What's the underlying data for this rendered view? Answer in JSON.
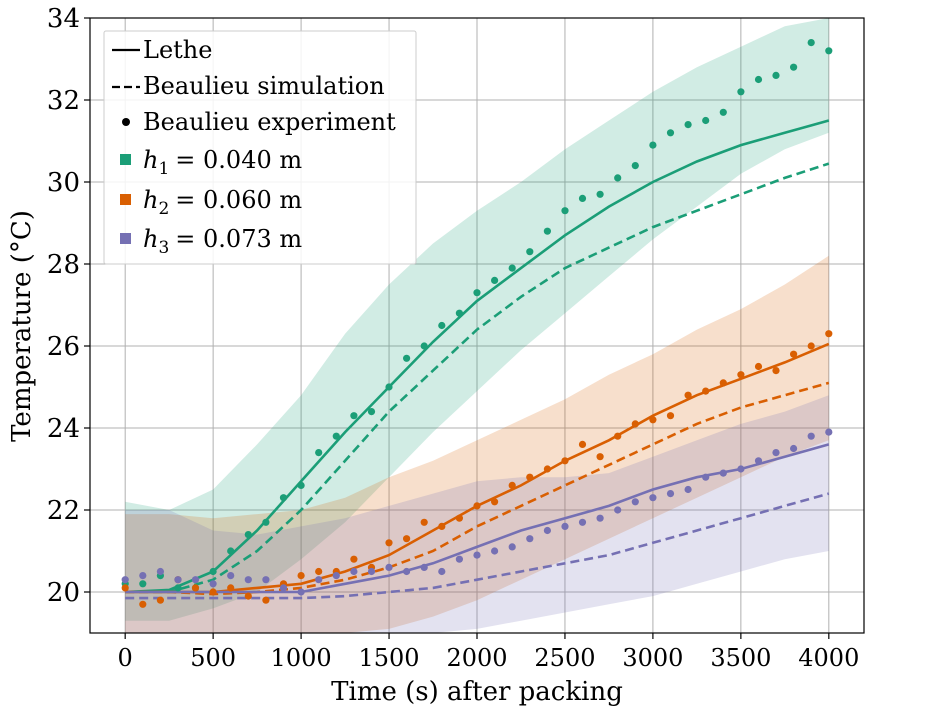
{
  "chart_data": {
    "type": "line",
    "xlabel": "Time (s) after packing",
    "ylabel": "Temperature (°C)",
    "xlim": [
      -200,
      4200
    ],
    "ylim": [
      19,
      34
    ],
    "xticks": [
      0,
      500,
      1000,
      1500,
      2000,
      2500,
      3000,
      3500,
      4000
    ],
    "yticks": [
      20,
      22,
      24,
      26,
      28,
      30,
      32,
      34
    ],
    "grid": true,
    "legend_position": "top-left",
    "legend": {
      "style_entries": [
        {
          "label": "Lethe",
          "style": "solid-line"
        },
        {
          "label": "Beaulieu simulation",
          "style": "dashed-line"
        },
        {
          "label": "Beaulieu experiment",
          "style": "dot"
        }
      ],
      "series_entries": [
        {
          "symbol": "h",
          "sub": "1",
          "value": "= 0.040 m"
        },
        {
          "symbol": "h",
          "sub": "2",
          "value": "= 0.060 m"
        },
        {
          "symbol": "h",
          "sub": "3",
          "value": "= 0.073 m"
        }
      ]
    },
    "series": [
      {
        "name": "h1 = 0.040 m",
        "color": "#1b9e77",
        "lethe": {
          "x": [
            0,
            250,
            500,
            750,
            1000,
            1250,
            1500,
            1750,
            2000,
            2250,
            2500,
            2750,
            3000,
            3250,
            3500,
            3750,
            4000
          ],
          "y": [
            20.0,
            20.05,
            20.5,
            21.5,
            22.7,
            23.9,
            25.0,
            26.1,
            27.1,
            27.9,
            28.7,
            29.4,
            30.0,
            30.5,
            30.9,
            31.2,
            31.5
          ]
        },
        "simulation": {
          "x": [
            0,
            250,
            500,
            750,
            1000,
            1250,
            1500,
            1750,
            2000,
            2250,
            2500,
            2750,
            3000,
            3250,
            3500,
            3750,
            4000
          ],
          "y": [
            20.0,
            20.0,
            20.3,
            21.0,
            22.0,
            23.2,
            24.4,
            25.4,
            26.4,
            27.2,
            27.9,
            28.4,
            28.9,
            29.3,
            29.7,
            30.1,
            30.45
          ]
        },
        "experiment": {
          "x": [
            0,
            100,
            200,
            300,
            400,
            500,
            600,
            700,
            800,
            900,
            1000,
            1100,
            1200,
            1300,
            1400,
            1500,
            1600,
            1700,
            1800,
            1900,
            2000,
            2100,
            2200,
            2300,
            2400,
            2500,
            2600,
            2700,
            2800,
            2900,
            3000,
            3100,
            3200,
            3300,
            3400,
            3500,
            3600,
            3700,
            3800,
            3900,
            4000
          ],
          "y": [
            20.2,
            20.2,
            20.4,
            20.1,
            20.1,
            20.5,
            21.0,
            21.4,
            21.7,
            22.3,
            22.6,
            23.4,
            23.8,
            24.3,
            24.4,
            25.0,
            25.7,
            26.0,
            26.5,
            26.8,
            27.3,
            27.6,
            27.9,
            28.3,
            28.8,
            29.3,
            29.6,
            29.7,
            30.1,
            30.4,
            30.9,
            31.2,
            31.4,
            31.5,
            31.7,
            32.2,
            32.5,
            32.6,
            32.8,
            33.4,
            33.2
          ]
        },
        "band": {
          "x": [
            0,
            250,
            500,
            750,
            1000,
            1250,
            1500,
            1750,
            2000,
            2250,
            2500,
            2750,
            3000,
            3250,
            3500,
            3750,
            4000
          ],
          "lower": [
            19.3,
            19.3,
            19.6,
            20.0,
            20.8,
            21.7,
            22.8,
            23.9,
            24.9,
            25.9,
            26.8,
            27.7,
            28.6,
            29.4,
            30.2,
            30.8,
            31.2
          ],
          "upper": [
            22.2,
            22.0,
            22.5,
            23.6,
            24.8,
            26.3,
            27.5,
            28.5,
            29.3,
            30.0,
            30.8,
            31.5,
            32.2,
            32.8,
            33.3,
            33.8,
            34.0
          ]
        }
      },
      {
        "name": "h2 = 0.060 m",
        "color": "#d95f02",
        "lethe": {
          "x": [
            0,
            250,
            500,
            750,
            1000,
            1250,
            1500,
            1750,
            2000,
            2250,
            2500,
            2750,
            3000,
            3250,
            3500,
            3750,
            4000
          ],
          "y": [
            20.0,
            20.0,
            20.0,
            20.1,
            20.2,
            20.5,
            20.9,
            21.5,
            22.1,
            22.6,
            23.2,
            23.7,
            24.3,
            24.8,
            25.2,
            25.6,
            26.05
          ]
        },
        "simulation": {
          "x": [
            0,
            250,
            500,
            750,
            1000,
            1250,
            1500,
            1750,
            2000,
            2250,
            2500,
            2750,
            3000,
            3250,
            3500,
            3750,
            4000
          ],
          "y": [
            20.0,
            20.0,
            19.95,
            20.0,
            20.1,
            20.3,
            20.6,
            21.0,
            21.6,
            22.1,
            22.6,
            23.1,
            23.6,
            24.1,
            24.5,
            24.8,
            25.1
          ]
        },
        "experiment": {
          "x": [
            0,
            100,
            200,
            300,
            400,
            500,
            600,
            700,
            800,
            900,
            1000,
            1100,
            1200,
            1300,
            1400,
            1500,
            1600,
            1700,
            1800,
            1900,
            2000,
            2100,
            2200,
            2300,
            2400,
            2500,
            2600,
            2700,
            2800,
            2900,
            3000,
            3100,
            3200,
            3300,
            3400,
            3500,
            3600,
            3700,
            3800,
            3900,
            4000
          ],
          "y": [
            20.1,
            19.7,
            19.8,
            20.3,
            20.1,
            20.0,
            20.1,
            19.9,
            19.8,
            20.2,
            20.4,
            20.5,
            20.5,
            20.8,
            20.6,
            21.2,
            21.3,
            21.7,
            21.6,
            21.8,
            22.1,
            22.2,
            22.6,
            22.8,
            23.0,
            23.2,
            23.6,
            23.3,
            23.8,
            24.1,
            24.2,
            24.3,
            24.8,
            24.9,
            25.1,
            25.3,
            25.5,
            25.4,
            25.8,
            26.0,
            26.3
          ]
        },
        "band": {
          "x": [
            0,
            250,
            500,
            750,
            1000,
            1250,
            1500,
            1750,
            2000,
            2250,
            2500,
            2750,
            3000,
            3250,
            3500,
            3750,
            4000
          ],
          "lower": [
            19.0,
            19.0,
            19.0,
            19.0,
            19.0,
            19.0,
            19.1,
            19.4,
            19.8,
            20.3,
            20.8,
            21.3,
            21.8,
            22.3,
            22.8,
            23.3,
            23.7
          ],
          "upper": [
            21.9,
            21.9,
            21.8,
            21.9,
            22.0,
            22.3,
            22.8,
            23.2,
            23.7,
            24.2,
            24.7,
            25.3,
            25.8,
            26.4,
            26.9,
            27.5,
            28.2
          ]
        }
      },
      {
        "name": "h3 = 0.073 m",
        "color": "#7570b3",
        "lethe": {
          "x": [
            0,
            250,
            500,
            750,
            1000,
            1250,
            1500,
            1750,
            2000,
            2250,
            2500,
            2750,
            3000,
            3250,
            3500,
            3750,
            4000
          ],
          "y": [
            20.0,
            20.0,
            20.0,
            20.0,
            20.0,
            20.2,
            20.4,
            20.7,
            21.1,
            21.5,
            21.8,
            22.1,
            22.5,
            22.8,
            23.0,
            23.3,
            23.6
          ]
        },
        "simulation": {
          "x": [
            0,
            250,
            500,
            750,
            1000,
            1250,
            1500,
            1750,
            2000,
            2250,
            2500,
            2750,
            3000,
            3250,
            3500,
            3750,
            4000
          ],
          "y": [
            19.85,
            19.85,
            19.85,
            19.85,
            19.85,
            19.9,
            20.0,
            20.1,
            20.3,
            20.5,
            20.7,
            20.9,
            21.2,
            21.5,
            21.8,
            22.1,
            22.4
          ]
        },
        "experiment": {
          "x": [
            0,
            100,
            200,
            300,
            400,
            500,
            600,
            700,
            800,
            900,
            1000,
            1100,
            1200,
            1300,
            1400,
            1500,
            1600,
            1700,
            1800,
            1900,
            2000,
            2100,
            2200,
            2300,
            2400,
            2500,
            2600,
            2700,
            2800,
            2900,
            3000,
            3100,
            3200,
            3300,
            3400,
            3500,
            3600,
            3700,
            3800,
            3900,
            4000
          ],
          "y": [
            20.3,
            20.4,
            20.5,
            20.3,
            20.3,
            20.2,
            20.4,
            20.3,
            20.3,
            20.1,
            20.0,
            20.3,
            20.4,
            20.5,
            20.5,
            20.6,
            20.5,
            20.6,
            20.5,
            20.8,
            20.9,
            21.0,
            21.1,
            21.3,
            21.5,
            21.6,
            21.7,
            21.8,
            22.0,
            22.2,
            22.3,
            22.4,
            22.5,
            22.8,
            22.9,
            23.0,
            23.2,
            23.4,
            23.5,
            23.8,
            23.9
          ]
        },
        "band": {
          "x": [
            0,
            250,
            500,
            750,
            1000,
            1250,
            1500,
            1750,
            2000,
            2250,
            2500,
            2750,
            3000,
            3250,
            3500,
            3750,
            4000
          ],
          "lower": [
            19.0,
            19.0,
            19.0,
            19.0,
            19.0,
            19.0,
            19.0,
            19.0,
            19.1,
            19.3,
            19.5,
            19.7,
            19.9,
            20.2,
            20.5,
            20.8,
            21.0
          ],
          "upper": [
            22.0,
            22.0,
            21.5,
            21.4,
            21.6,
            21.8,
            22.1,
            22.4,
            22.7,
            22.8,
            22.8,
            22.9,
            23.3,
            23.7,
            24.1,
            24.4,
            24.8
          ]
        }
      }
    ]
  }
}
